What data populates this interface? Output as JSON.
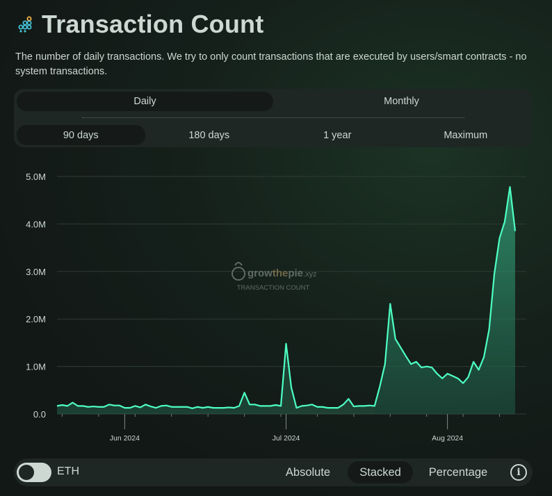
{
  "header": {
    "title": "Transaction Count",
    "description": "The number of daily transactions. We try to only count transactions that are executed by users/smart contracts - no system transactions."
  },
  "interval_tabs": [
    "Daily",
    "Monthly"
  ],
  "range_tabs": [
    "90 days",
    "180 days",
    "1 year",
    "Maximum"
  ],
  "watermark": {
    "brand_main": "grow",
    "brand_the": "the",
    "brand_pie": "pie",
    "brand_tld": ".xyz",
    "subtitle": "TRANSACTION COUNT"
  },
  "bottom": {
    "toggle_label": "ETH",
    "modes": [
      "Absolute",
      "Stacked",
      "Percentage"
    ],
    "info": "i"
  },
  "colors": {
    "line": "#4dffc4",
    "fill": "#2b8f6b",
    "accent": "#4dffc4"
  },
  "chart_data": {
    "type": "area",
    "y_ticks": [
      "0.0",
      "1.0M",
      "2.0M",
      "3.0M",
      "4.0M",
      "5.0M"
    ],
    "ylim": [
      0,
      5000000
    ],
    "x_ticks": [
      "Jun 2024",
      "Jul 2024",
      "Aug 2024"
    ],
    "series": [
      {
        "values": [
          0.17,
          0.19,
          0.17,
          0.24,
          0.17,
          0.17,
          0.15,
          0.16,
          0.15,
          0.15,
          0.2,
          0.18,
          0.18,
          0.13,
          0.13,
          0.17,
          0.14,
          0.2,
          0.16,
          0.13,
          0.17,
          0.18,
          0.15,
          0.15,
          0.15,
          0.15,
          0.12,
          0.15,
          0.13,
          0.15,
          0.13,
          0.13,
          0.13,
          0.14,
          0.13,
          0.17,
          0.45,
          0.2,
          0.2,
          0.17,
          0.17,
          0.17,
          0.19,
          0.17,
          1.48,
          0.56,
          0.13,
          0.17,
          0.18,
          0.2,
          0.15,
          0.15,
          0.13,
          0.13,
          0.13,
          0.2,
          0.32,
          0.16,
          0.17,
          0.17,
          0.18,
          0.17,
          0.58,
          1.05,
          2.32,
          1.58,
          1.4,
          1.22,
          1.05,
          1.1,
          0.98,
          1.0,
          0.98,
          0.85,
          0.75,
          0.85,
          0.8,
          0.75,
          0.65,
          0.78,
          1.1,
          0.93,
          1.2,
          1.78,
          2.95,
          3.7,
          4.05,
          4.78,
          3.85
        ],
        "unit": "M"
      }
    ]
  }
}
